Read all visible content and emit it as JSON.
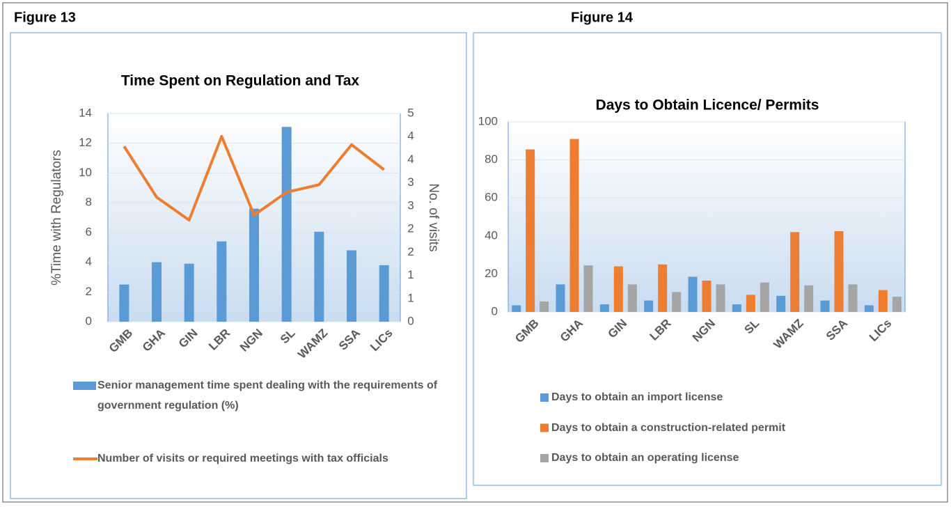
{
  "labels": [
    "Figure 13",
    "Figure 14"
  ],
  "chart_data": [
    {
      "type": "bar_line",
      "title": "Time Spent on Regulation and Tax",
      "y_label": "%Time with Regulators",
      "y2_label": "No. of visits",
      "categories": [
        "GMB",
        "GHA",
        "GIN",
        "LBR",
        "NGN",
        "SL",
        "WAMZ",
        "SSA",
        "LICs"
      ],
      "series": [
        {
          "name": "Senior management time spent dealing with the requirements of government regulation (%)",
          "color": "#5b9bd5",
          "type": "bar",
          "values": [
            2.5,
            4.0,
            3.9,
            5.4,
            7.6,
            13.1,
            6.05,
            4.8,
            3.8
          ]
        },
        {
          "name": "Number of visits or required meetings with tax officials",
          "color": "#ed7d31",
          "type": "line",
          "axis": "y2",
          "values": [
            4.21,
            2.99,
            2.44,
            4.45,
            2.56,
            3.11,
            3.29,
            4.25,
            3.65
          ]
        }
      ],
      "ylim": [
        0,
        14
      ],
      "yticks": [
        0,
        2,
        4,
        6,
        8,
        10,
        12,
        14
      ],
      "y2lim": [
        0,
        5
      ],
      "y2ticks": [
        {
          "value": 0,
          "label": "0"
        },
        {
          "value": 0.5556,
          "label": "1"
        },
        {
          "value": 1.1111,
          "label": "1"
        },
        {
          "value": 1.6667,
          "label": "2"
        },
        {
          "value": 2.2222,
          "label": "2"
        },
        {
          "value": 2.7778,
          "label": "3"
        },
        {
          "value": 3.3333,
          "label": "3"
        },
        {
          "value": 3.8889,
          "label": "4"
        },
        {
          "value": 4.4444,
          "label": "4"
        },
        {
          "value": 5,
          "label": "5"
        }
      ],
      "grid": true
    },
    {
      "type": "bar",
      "title": "Days to Obtain Licence/ Permits",
      "categories": [
        "GMB",
        "GHA",
        "GIN",
        "LBR",
        "NGN",
        "SL",
        "WAMZ",
        "SSA",
        "LICs"
      ],
      "series": [
        {
          "name": "Days to obtain an import license",
          "color": "#5b9bd5",
          "values": [
            3.5,
            14.5,
            4,
            6,
            18.5,
            4,
            8.5,
            6,
            3.5
          ]
        },
        {
          "name": "Days to obtain a construction-related permit",
          "color": "#ed7d31",
          "values": [
            85.5,
            91,
            24,
            25,
            16.5,
            9,
            42,
            42.5,
            11.5
          ]
        },
        {
          "name": "Days to obtain an operating license",
          "color": "#a5a5a5",
          "values": [
            5.5,
            24.5,
            14.5,
            10.5,
            14.5,
            15.5,
            14,
            14.5,
            8
          ]
        }
      ],
      "ylim": [
        0,
        100
      ],
      "yticks": [
        0,
        20,
        40,
        60,
        80,
        100
      ],
      "grid": true
    }
  ]
}
